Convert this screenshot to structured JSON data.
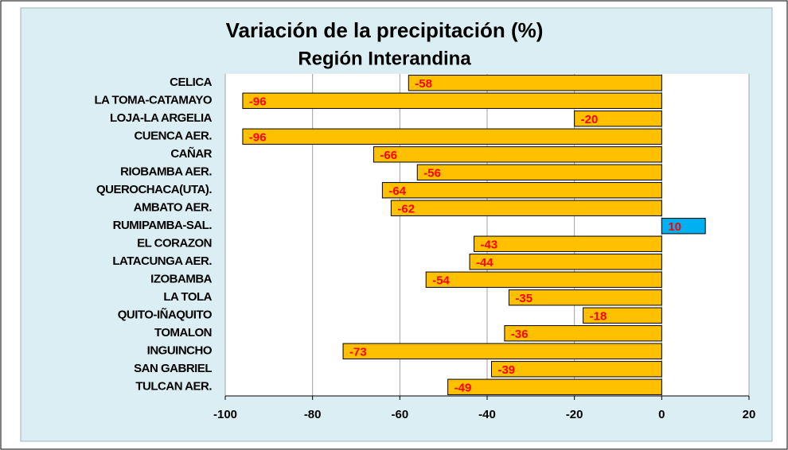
{
  "chart_data": {
    "type": "barh",
    "title": "Variación de la precipitación (%)",
    "subtitle": "Región Interandina",
    "categories": [
      "CELICA",
      "LA TOMA-CATAMAYO",
      "LOJA-LA ARGELIA",
      "CUENCA AER.",
      "CAÑAR",
      "RIOBAMBA AER.",
      "QUEROCHACA(UTA).",
      "AMBATO AER.",
      "RUMIPAMBA-SAL.",
      "EL CORAZON",
      "LATACUNGA AER.",
      "IZOBAMBA",
      "LA TOLA",
      "QUITO-IÑAQUITO",
      "TOMALON",
      "INGUINCHO",
      "SAN GABRIEL",
      "TULCAN AER."
    ],
    "values": [
      -58,
      -96,
      -20,
      -96,
      -66,
      -56,
      -64,
      -62,
      10,
      -43,
      -44,
      -54,
      -35,
      -18,
      -36,
      -73,
      -39,
      -49
    ],
    "colors": [
      "#ffc000",
      "#ffc000",
      "#ffc000",
      "#ffc000",
      "#ffc000",
      "#ffc000",
      "#ffc000",
      "#ffc000",
      "#00b0f0",
      "#ffc000",
      "#ffc000",
      "#ffc000",
      "#ffc000",
      "#ffc000",
      "#ffc000",
      "#ffc000",
      "#ffc000",
      "#ffc000"
    ],
    "label_color": "#ff0000",
    "xlim": [
      -100,
      20
    ],
    "xticks": [
      -100,
      -80,
      -60,
      -40,
      -20,
      0,
      20
    ],
    "grid": true
  }
}
